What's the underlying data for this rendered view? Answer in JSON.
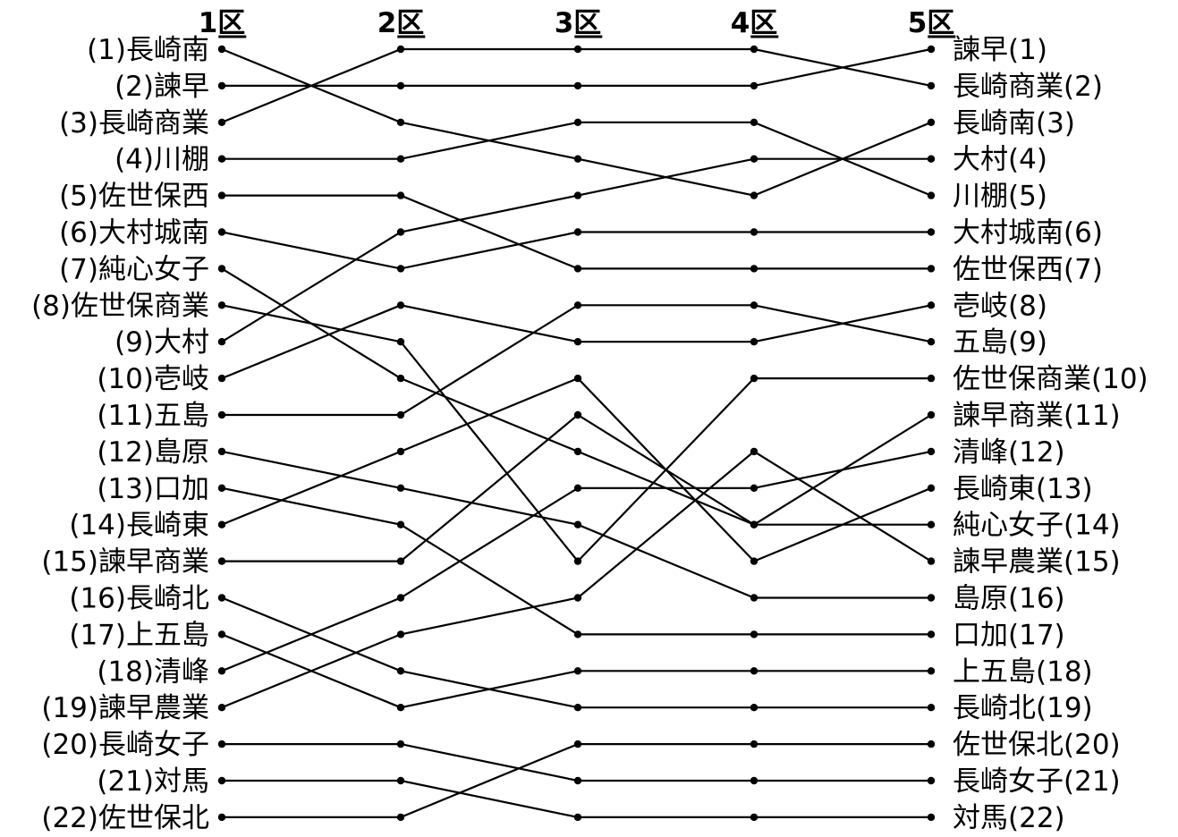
{
  "chart_data": {
    "type": "line",
    "title": "",
    "x": [
      "1区",
      "2区",
      "3区",
      "4区",
      "5区"
    ],
    "ylabel": "",
    "series": [
      {
        "name": "長崎南",
        "values": [
          1,
          3,
          4,
          5,
          3
        ]
      },
      {
        "name": "諫早",
        "values": [
          2,
          2,
          2,
          2,
          1
        ]
      },
      {
        "name": "長崎商業",
        "values": [
          3,
          1,
          1,
          1,
          2
        ]
      },
      {
        "name": "川棚",
        "values": [
          4,
          4,
          3,
          3,
          5
        ]
      },
      {
        "name": "佐世保西",
        "values": [
          5,
          5,
          7,
          7,
          7
        ]
      },
      {
        "name": "大村城南",
        "values": [
          6,
          7,
          6,
          6,
          6
        ]
      },
      {
        "name": "純心女子",
        "values": [
          7,
          10,
          12,
          14,
          14
        ]
      },
      {
        "name": "佐世保商業",
        "values": [
          8,
          9,
          15,
          10,
          10
        ]
      },
      {
        "name": "大村",
        "values": [
          9,
          6,
          5,
          4,
          4
        ]
      },
      {
        "name": "壱岐",
        "values": [
          10,
          8,
          9,
          9,
          8
        ]
      },
      {
        "name": "五島",
        "values": [
          11,
          11,
          8,
          8,
          9
        ]
      },
      {
        "name": "島原",
        "values": [
          12,
          13,
          14,
          16,
          16
        ]
      },
      {
        "name": "口加",
        "values": [
          13,
          14,
          17,
          17,
          17
        ]
      },
      {
        "name": "長崎東",
        "values": [
          14,
          12,
          10,
          15,
          13
        ]
      },
      {
        "name": "諫早商業",
        "values": [
          15,
          15,
          11,
          14,
          11
        ]
      },
      {
        "name": "長崎北",
        "values": [
          16,
          18,
          19,
          19,
          19
        ]
      },
      {
        "name": "上五島",
        "values": [
          17,
          19,
          18,
          18,
          18
        ]
      },
      {
        "name": "清峰",
        "values": [
          18,
          16,
          13,
          13,
          12
        ]
      },
      {
        "name": "諫早農業",
        "values": [
          19,
          17,
          16,
          12,
          15
        ]
      },
      {
        "name": "長崎女子",
        "values": [
          20,
          20,
          21,
          21,
          21
        ]
      },
      {
        "name": "対馬",
        "values": [
          21,
          21,
          22,
          22,
          22
        ]
      },
      {
        "name": "佐世保北",
        "values": [
          22,
          22,
          20,
          20,
          20
        ]
      }
    ],
    "ylim": [
      1,
      22
    ],
    "grid": false,
    "legend": "none"
  }
}
